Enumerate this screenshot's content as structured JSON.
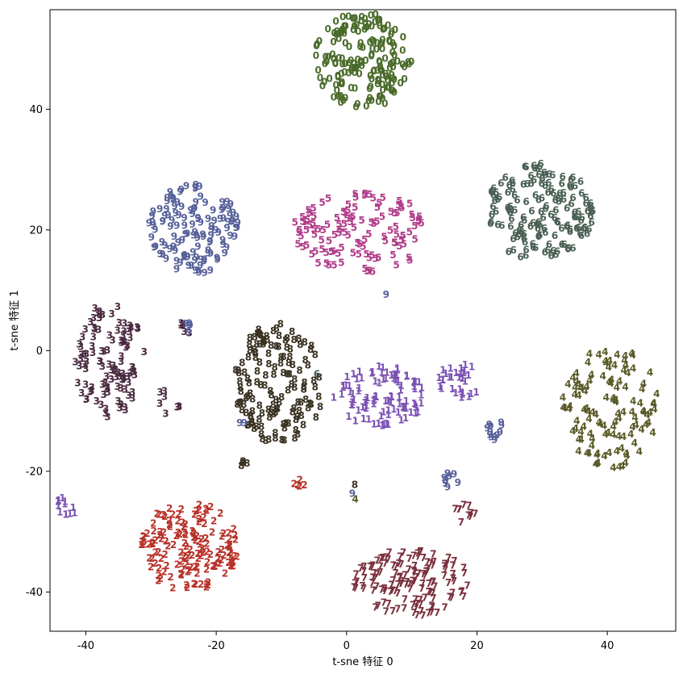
{
  "chart_data": {
    "type": "scatter",
    "title": "",
    "xlabel": "t-sne 特征 0",
    "ylabel": "t-sne 特征 1",
    "xlim": [
      -45.5,
      50.5
    ],
    "ylim": [
      -46.5,
      56.5
    ],
    "xticks": [
      -40,
      -20,
      0,
      20,
      40
    ],
    "yticks": [
      -40,
      -20,
      0,
      20,
      40
    ],
    "xtick_labels": [
      "-40",
      "-20",
      "0",
      "20",
      "40"
    ],
    "ytick_labels": [
      "-40",
      "-20",
      "0",
      "20",
      "40"
    ],
    "grid": false,
    "legend": "none",
    "series": [
      {
        "label": "0",
        "color": "#4a6b2a",
        "clusters": [
          {
            "cx": 2.5,
            "cy": 48.0,
            "rx": 7.5,
            "ry": 8.0,
            "n": 180
          }
        ]
      },
      {
        "label": "1",
        "color": "#7b52b4",
        "clusters": [
          {
            "cx": 5.0,
            "cy": -7.5,
            "rx": 7.0,
            "ry": 5.0,
            "n": 100
          },
          {
            "cx": 17.5,
            "cy": -5.0,
            "rx": 3.5,
            "ry": 3.0,
            "n": 30
          },
          {
            "cx": -43.0,
            "cy": -26.0,
            "rx": 1.5,
            "ry": 2.0,
            "n": 12
          }
        ]
      },
      {
        "label": "2",
        "color": "#b83028",
        "clusters": [
          {
            "cx": -24.0,
            "cy": -32.5,
            "rx": 7.5,
            "ry": 7.5,
            "n": 150
          },
          {
            "cx": -7.5,
            "cy": -22.0,
            "rx": 1.2,
            "ry": 0.6,
            "n": 5
          }
        ]
      },
      {
        "label": "3",
        "color": "#4a2a40",
        "clusters": [
          {
            "cx": -36.5,
            "cy": -1.5,
            "rx": 5.5,
            "ry": 9.5,
            "n": 110
          },
          {
            "cx": -27.5,
            "cy": -8.5,
            "rx": 2.0,
            "ry": 2.5,
            "n": 8
          },
          {
            "cx": -24.8,
            "cy": 3.5,
            "rx": 0.8,
            "ry": 1.5,
            "n": 6
          }
        ]
      },
      {
        "label": "4",
        "color": "#5a5a28",
        "clusters": [
          {
            "cx": 40.5,
            "cy": -9.5,
            "rx": 7.5,
            "ry": 10.0,
            "n": 120
          },
          {
            "cx": 1.5,
            "cy": -25.0,
            "rx": 0.5,
            "ry": 0.5,
            "n": 1
          }
        ]
      },
      {
        "label": "5",
        "color": "#b03a88",
        "clusters": [
          {
            "cx": 2.5,
            "cy": 19.5,
            "rx": 11.0,
            "ry": 6.5,
            "n": 120
          }
        ]
      },
      {
        "label": "6",
        "color": "#4a6054",
        "clusters": [
          {
            "cx": 29.5,
            "cy": 23.0,
            "rx": 8.5,
            "ry": 8.0,
            "n": 160
          },
          {
            "cx": -4.5,
            "cy": -3.8,
            "rx": 0.3,
            "ry": 0.3,
            "n": 1
          }
        ]
      },
      {
        "label": "7",
        "color": "#7a2f3c",
        "clusters": [
          {
            "cx": 10.0,
            "cy": -38.5,
            "rx": 9.0,
            "ry": 5.5,
            "n": 140
          },
          {
            "cx": 17.5,
            "cy": -27.0,
            "rx": 2.5,
            "ry": 1.5,
            "n": 10
          }
        ]
      },
      {
        "label": "8",
        "color": "#3a3222",
        "clusters": [
          {
            "cx": -10.5,
            "cy": -5.5,
            "rx": 7.0,
            "ry": 10.0,
            "n": 150
          },
          {
            "cx": -16.0,
            "cy": -18.8,
            "rx": 0.8,
            "ry": 0.5,
            "n": 4
          },
          {
            "cx": 1.0,
            "cy": -22.5,
            "rx": 0.5,
            "ry": 0.5,
            "n": 1
          }
        ]
      },
      {
        "label": "9",
        "color": "#56609a",
        "clusters": [
          {
            "cx": -23.5,
            "cy": 20.0,
            "rx": 7.0,
            "ry": 7.5,
            "n": 130
          },
          {
            "cx": 22.5,
            "cy": -13.0,
            "rx": 1.5,
            "ry": 2.0,
            "n": 12
          },
          {
            "cx": 16.0,
            "cy": -21.5,
            "rx": 1.2,
            "ry": 1.5,
            "n": 8
          },
          {
            "cx": -24.5,
            "cy": 4.0,
            "rx": 0.8,
            "ry": 1.5,
            "n": 5
          },
          {
            "cx": 6.0,
            "cy": 9.5,
            "rx": 0.3,
            "ry": 0.3,
            "n": 1
          },
          {
            "cx": -16.0,
            "cy": -12.0,
            "rx": 0.5,
            "ry": 0.5,
            "n": 2
          },
          {
            "cx": 1.0,
            "cy": -24.0,
            "rx": 0.5,
            "ry": 0.5,
            "n": 1
          }
        ]
      }
    ]
  }
}
